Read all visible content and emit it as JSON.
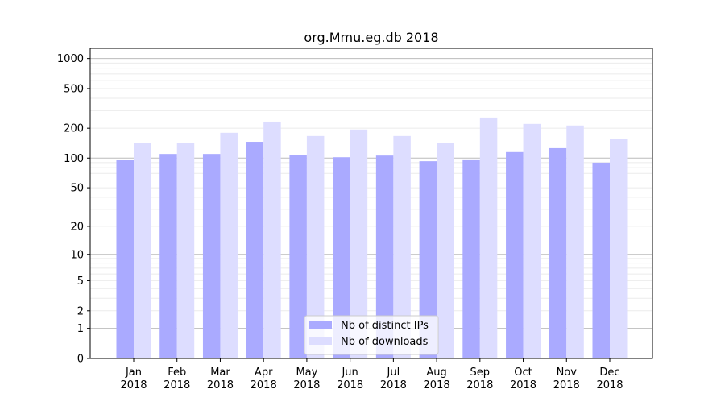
{
  "chart_data": {
    "type": "bar",
    "title": "org.Mmu.eg.db 2018",
    "xlabel": "",
    "ylabel": "",
    "yscale": "log(1+y)",
    "ylim": [
      0,
      1200
    ],
    "yticks": [
      0,
      1,
      2,
      5,
      10,
      20,
      50,
      100,
      200,
      500,
      1000
    ],
    "grid": true,
    "legend_position": "bottom-center",
    "categories": [
      "Jan\n2018",
      "Feb\n2018",
      "Mar\n2018",
      "Apr\n2018",
      "May\n2018",
      "Jun\n2018",
      "Jul\n2018",
      "Aug\n2018",
      "Sep\n2018",
      "Oct\n2018",
      "Nov\n2018",
      "Dec\n2018"
    ],
    "series": [
      {
        "name": "Nb of distinct IPs",
        "color": "#aaaaff",
        "values": [
          95,
          110,
          110,
          146,
          108,
          102,
          106,
          93,
          97,
          115,
          126,
          90
        ]
      },
      {
        "name": "Nb of downloads",
        "color": "#ddddff",
        "values": [
          141,
          141,
          180,
          233,
          167,
          194,
          167,
          141,
          256,
          221,
          213,
          155
        ]
      }
    ]
  }
}
